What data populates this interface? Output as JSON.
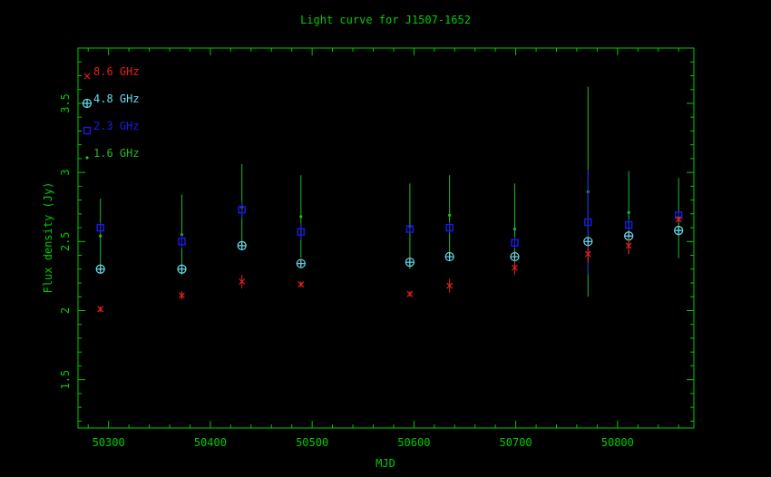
{
  "chart_data": {
    "type": "scatter",
    "title": "Light curve for J1507-1652",
    "xlabel": "MJD",
    "ylabel": "Flux density (Jy)",
    "xlim": [
      50270,
      50875
    ],
    "ylim": [
      1.15,
      3.9
    ],
    "xticks": [
      50300,
      50400,
      50500,
      50600,
      50700,
      50800
    ],
    "xtick_labels": [
      "50300",
      "50400",
      "50500",
      "50600",
      "50700",
      "50800"
    ],
    "yticks": [
      1.5,
      2,
      2.5,
      3,
      3.5
    ],
    "ytick_labels": [
      "1.5",
      "2",
      "2.5",
      "3",
      "3.5"
    ],
    "legend_position": "top-left",
    "axis_color": "#00cc00",
    "series": [
      {
        "name": "8.6 GHz",
        "marker": "cross",
        "color": "#e8201c",
        "x": [
          50292,
          50372,
          50431,
          50489,
          50596,
          50635,
          50699,
          50771,
          50811,
          50860
        ],
        "y": [
          2.01,
          2.11,
          2.21,
          2.19,
          2.12,
          2.18,
          2.31,
          2.41,
          2.47,
          2.66
        ],
        "err": [
          0.02,
          0.03,
          0.05,
          0.02,
          0.02,
          0.05,
          0.05,
          0.06,
          0.06,
          0.02
        ]
      },
      {
        "name": "4.8 GHz",
        "marker": "circle-plus",
        "color": "#66ddee",
        "x": [
          50292,
          50372,
          50431,
          50489,
          50596,
          50635,
          50699,
          50771,
          50811,
          50860
        ],
        "y": [
          2.3,
          2.3,
          2.47,
          2.34,
          2.35,
          2.39,
          2.39,
          2.5,
          2.54,
          2.58
        ],
        "err": [
          0,
          0,
          0,
          0,
          0,
          0,
          0,
          0,
          0,
          0
        ]
      },
      {
        "name": "2.3 GHz",
        "marker": "square",
        "color": "#1a1aee",
        "x": [
          50292,
          50372,
          50431,
          50489,
          50596,
          50635,
          50699,
          50771,
          50811,
          50860
        ],
        "y": [
          2.6,
          2.5,
          2.73,
          2.57,
          2.59,
          2.6,
          2.49,
          2.64,
          2.62,
          2.69
        ],
        "err": [
          0.04,
          0.05,
          0.06,
          0.06,
          0.03,
          0.04,
          0.04,
          0.38,
          0.04,
          0.03
        ]
      },
      {
        "name": "1.6 GHz",
        "marker": "dot",
        "color": "#22bb22",
        "x": [
          50292,
          50372,
          50431,
          50489,
          50596,
          50635,
          50699,
          50771,
          50811,
          50860
        ],
        "y": [
          2.54,
          2.55,
          2.75,
          2.68,
          2.61,
          2.69,
          2.59,
          2.86,
          2.71,
          2.67
        ],
        "err": [
          0.27,
          0.29,
          0.31,
          0.3,
          0.31,
          0.29,
          0.33,
          0.76,
          0.3,
          0.29
        ]
      }
    ]
  }
}
